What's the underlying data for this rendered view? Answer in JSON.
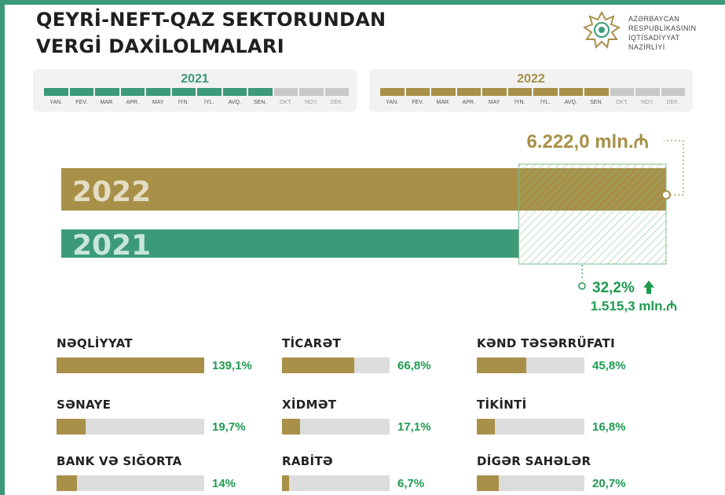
{
  "title": {
    "line1": "QEYRİ-NEFT-QAZ SEKTORUNDAN",
    "line2": "VERGİ DAXİLOLMALARI"
  },
  "ministry": [
    "AZƏRBAYCAN",
    "RESPUBLİKASININ",
    "İQTİSADİYYAT",
    "NAZİRLİYİ"
  ],
  "colors": {
    "green": "#3c9a78",
    "gold": "#a89048",
    "grey": "#c8c8c8",
    "track": "#dcdcdc",
    "pct": "#1e9b4f"
  },
  "months_2021": {
    "year": "2021",
    "active": 9,
    "labels": [
      "YAN.",
      "FEV.",
      "MAR.",
      "APR.",
      "MAY",
      "İYN.",
      "İYL.",
      "AVQ.",
      "SEN.",
      "OKT.",
      "NOY.",
      "DEK."
    ]
  },
  "months_2022": {
    "year": "2022",
    "active": 9,
    "labels": [
      "YAN.",
      "FEV.",
      "MAR.",
      "APR.",
      "MAY",
      "İYN.",
      "İYL.",
      "AVQ.",
      "SEN.",
      "OKT.",
      "NOY.",
      "DEK."
    ]
  },
  "chart_data": {
    "type": "bar",
    "orientation": "horizontal",
    "categories": [
      "2022",
      "2021"
    ],
    "values": [
      6222.0,
      4706.7
    ],
    "total_label": "6.222,0 mln.₼",
    "growth_pct_label": "32,2%",
    "growth_abs_label": "1.515,3 mln.₼",
    "xlim": [
      0,
      6222.0
    ]
  },
  "sectors": [
    {
      "name": "Nəqliyyat",
      "pct": 139.1,
      "label": "139,1%"
    },
    {
      "name": "Ticarət",
      "pct": 66.8,
      "label": "66,8%"
    },
    {
      "name": "Kənd təsərrüfatı",
      "pct": 45.8,
      "label": "45,8%"
    },
    {
      "name": "Sənaye",
      "pct": 19.7,
      "label": "19,7%"
    },
    {
      "name": "Xidmət",
      "pct": 17.1,
      "label": "17,1%"
    },
    {
      "name": "Tikinti",
      "pct": 16.8,
      "label": "16,8%"
    },
    {
      "name": "Bank və sığorta",
      "pct": 14,
      "label": "14%"
    },
    {
      "name": "Rabitə",
      "pct": 6.7,
      "label": "6,7%"
    },
    {
      "name": "Digər sahələr",
      "pct": 20.7,
      "label": "20,7%"
    }
  ]
}
